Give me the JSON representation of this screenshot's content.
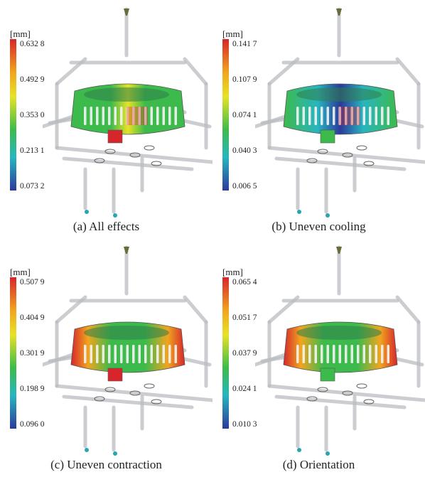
{
  "panels": [
    {
      "caption": "(a) All effects",
      "unit": "[mm]",
      "ticks": [
        "0.632 8",
        "0.492 9",
        "0.353 0",
        "0.213 1",
        "0.073 2"
      ],
      "color_scheme": "mixed",
      "hot_regions": [
        "front-center-ribs",
        "boss-bottom"
      ]
    },
    {
      "caption": "(b) Uneven cooling",
      "unit": "[mm]",
      "ticks": [
        "0.141 7",
        "0.107 9",
        "0.074 1",
        "0.040 3",
        "0.006 5"
      ],
      "color_scheme": "blue-dominant",
      "hot_regions": [
        "front-center-ribs"
      ]
    },
    {
      "caption": "(c) Uneven contraction",
      "unit": "[mm]",
      "ticks": [
        "0.507 9",
        "0.404 9",
        "0.301 9",
        "0.198 9",
        "0.096 0"
      ],
      "color_scheme": "red-sides",
      "hot_regions": [
        "left-side",
        "right-side",
        "boss-bottom"
      ]
    },
    {
      "caption": "(d) Orientation",
      "unit": "[mm]",
      "ticks": [
        "0.065 4",
        "0.051 7",
        "0.037 9",
        "0.024 1",
        "0.010 3"
      ],
      "color_scheme": "red-sides",
      "hot_regions": [
        "left-side",
        "right-side"
      ]
    }
  ],
  "colors": {
    "red": "#d7262b",
    "orange": "#f0a51f",
    "yellow": "#e6e327",
    "green": "#3dba4c",
    "cyan": "#28b5c0",
    "blue": "#2c3a9a"
  }
}
